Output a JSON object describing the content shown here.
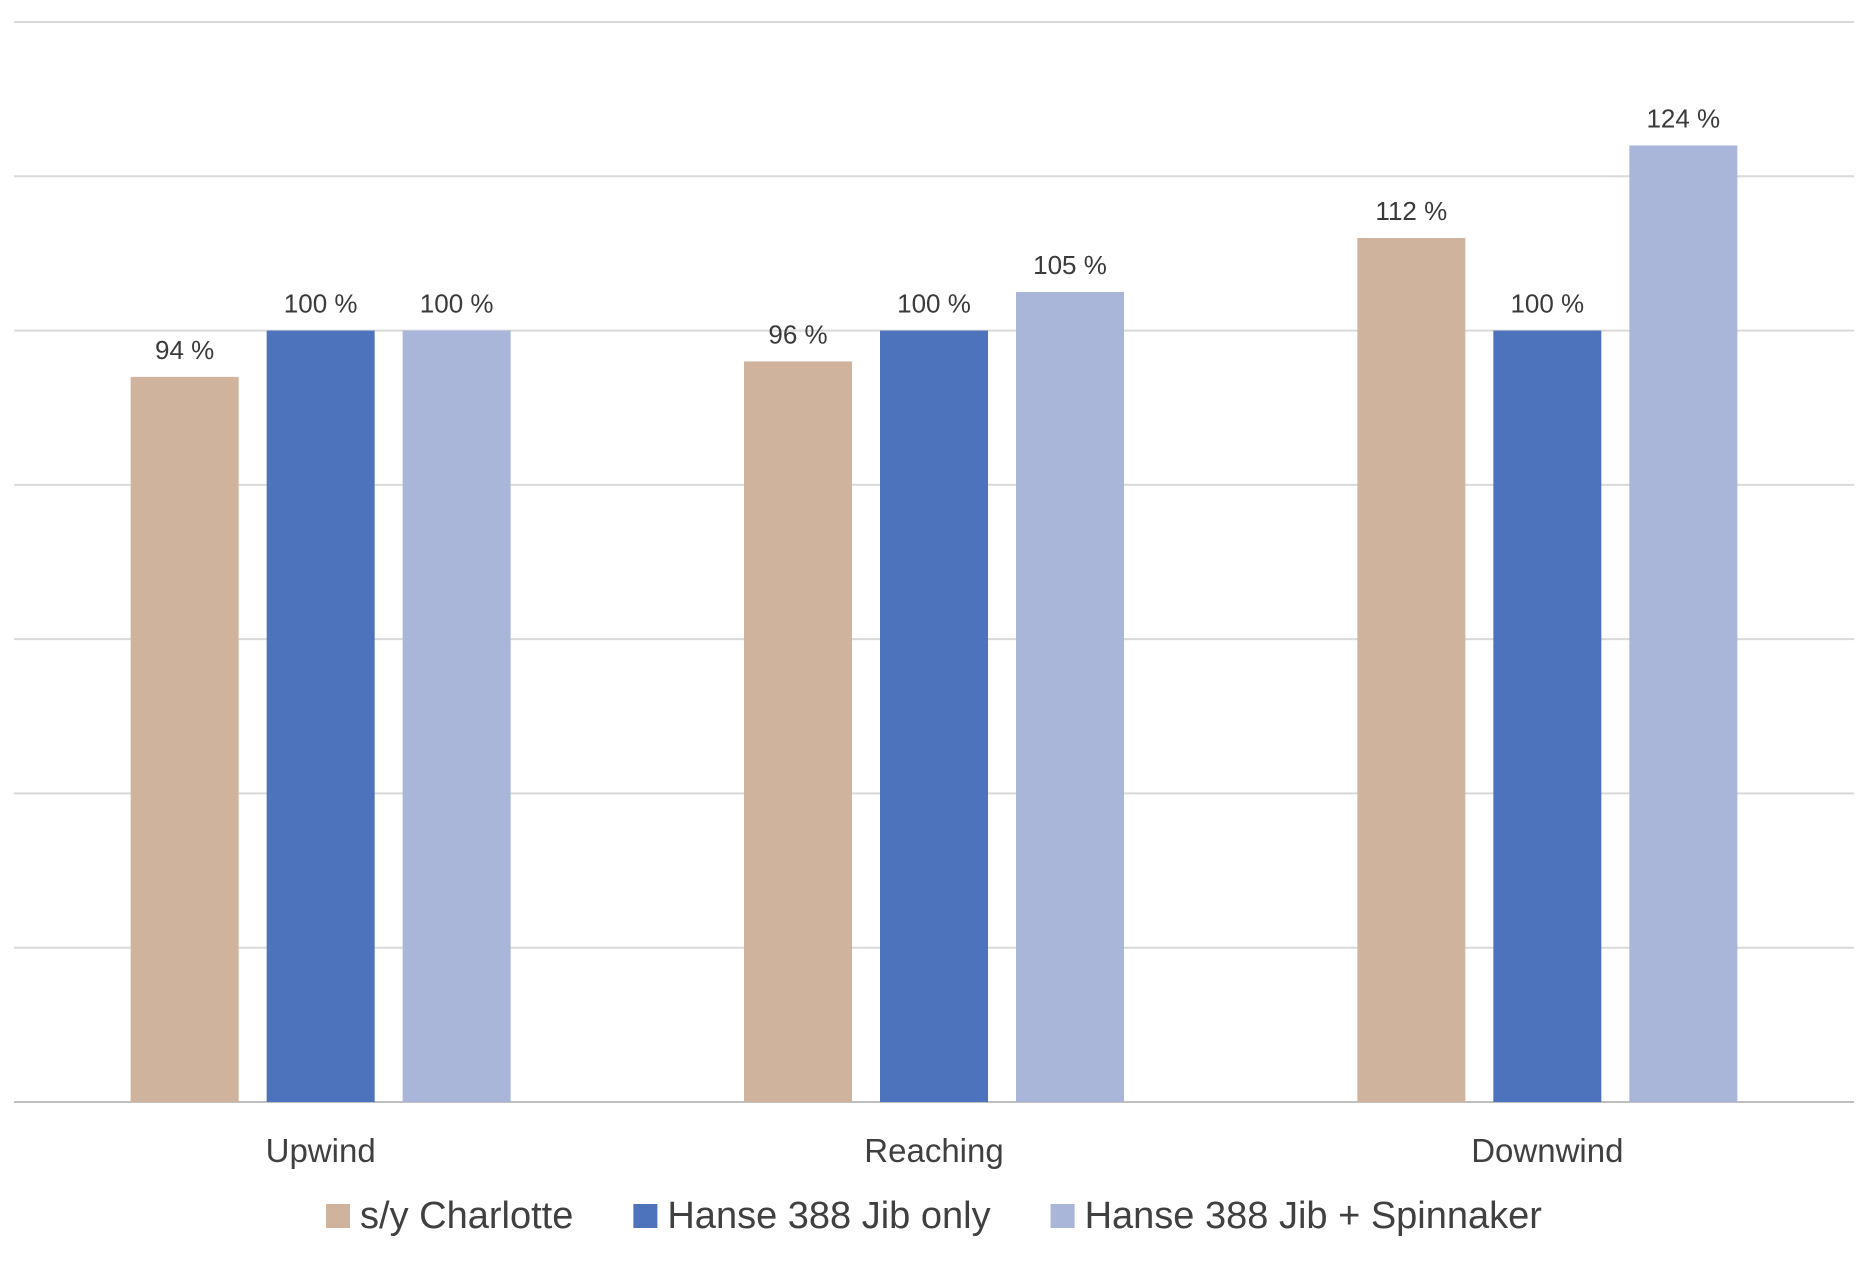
{
  "chart_data": {
    "type": "bar",
    "title": "",
    "xlabel": "",
    "ylabel": "",
    "categories": [
      "Upwind",
      "Reaching",
      "Downwind"
    ],
    "series": [
      {
        "name": "s/y Charlotte",
        "color": "#cfb39c",
        "values": [
          94,
          96,
          112
        ],
        "labels": [
          "94 %",
          "96 %",
          "112 %"
        ]
      },
      {
        "name": "Hanse 388 Jib only",
        "color": "#4e73bd",
        "values": [
          100,
          100,
          100
        ],
        "labels": [
          "100 %",
          "100 %",
          "100 %"
        ]
      },
      {
        "name": "Hanse 388 Jib + Spinnaker",
        "color": "#a9b6da",
        "values": [
          100,
          105,
          124
        ],
        "labels": [
          "100 %",
          "105 %",
          "124 %"
        ]
      }
    ],
    "ylim": [
      0,
      140
    ],
    "y_grid_step": 20,
    "y_tick_labels_shown": false,
    "grid": true,
    "legend_position": "bottom"
  }
}
